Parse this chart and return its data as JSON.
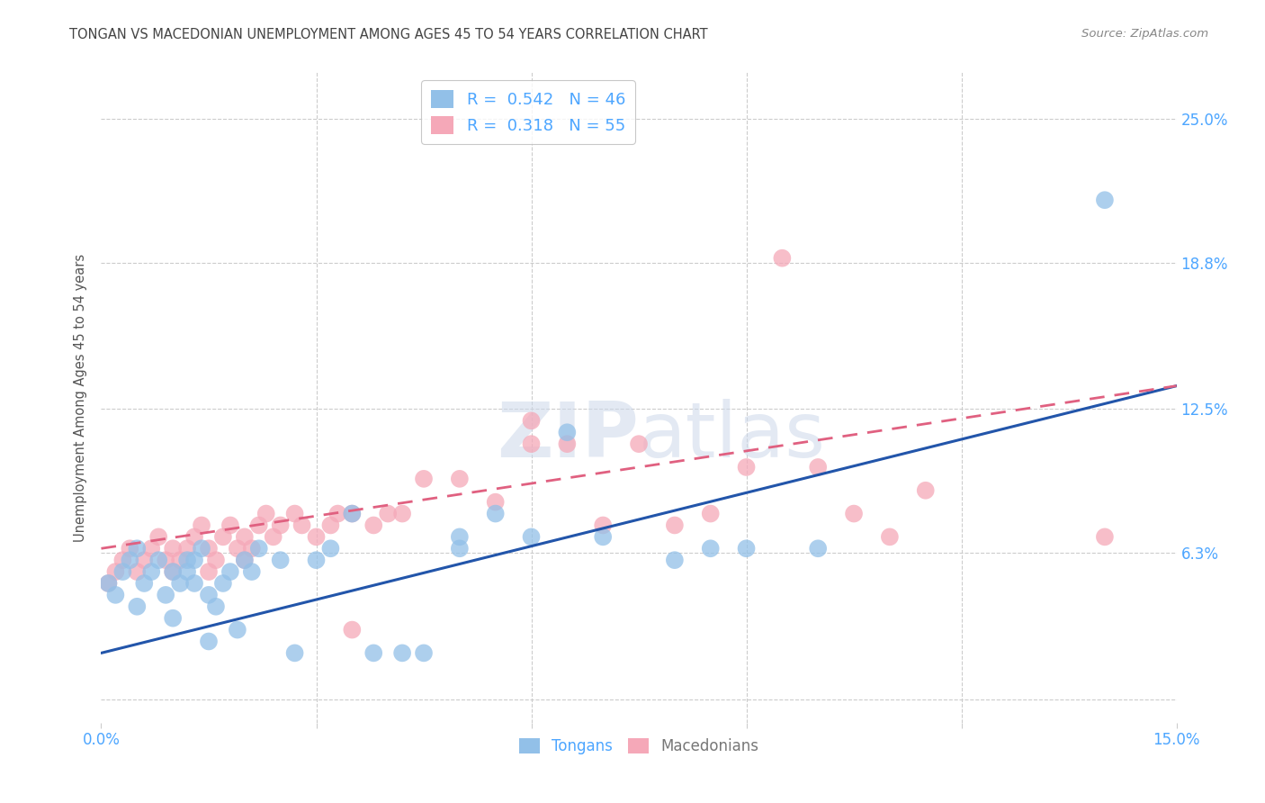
{
  "title": "TONGAN VS MACEDONIAN UNEMPLOYMENT AMONG AGES 45 TO 54 YEARS CORRELATION CHART",
  "source": "Source: ZipAtlas.com",
  "ylabel": "Unemployment Among Ages 45 to 54 years",
  "xlim": [
    0.0,
    0.15
  ],
  "ylim": [
    -0.01,
    0.27
  ],
  "xticks": [
    0.0,
    0.03,
    0.06,
    0.09,
    0.12,
    0.15
  ],
  "ytick_vals": [
    0.0,
    0.063,
    0.125,
    0.188,
    0.25
  ],
  "ytick_labels": [
    "",
    "6.3%",
    "12.5%",
    "18.8%",
    "25.0%"
  ],
  "tongan_R": 0.542,
  "tongan_N": 46,
  "macedonian_R": 0.318,
  "macedonian_N": 55,
  "tongan_color": "#92c0e8",
  "macedonian_color": "#f5a8b8",
  "tongan_line_color": "#2255aa",
  "macedonian_line_color": "#e06080",
  "tongan_scatter_x": [
    0.001,
    0.002,
    0.003,
    0.004,
    0.005,
    0.005,
    0.006,
    0.007,
    0.008,
    0.009,
    0.01,
    0.01,
    0.011,
    0.012,
    0.012,
    0.013,
    0.013,
    0.014,
    0.015,
    0.015,
    0.016,
    0.017,
    0.018,
    0.019,
    0.02,
    0.021,
    0.022,
    0.025,
    0.027,
    0.03,
    0.032,
    0.035,
    0.038,
    0.042,
    0.045,
    0.05,
    0.05,
    0.055,
    0.06,
    0.065,
    0.07,
    0.08,
    0.085,
    0.09,
    0.1,
    0.14
  ],
  "tongan_scatter_y": [
    0.05,
    0.045,
    0.055,
    0.06,
    0.04,
    0.065,
    0.05,
    0.055,
    0.06,
    0.045,
    0.035,
    0.055,
    0.05,
    0.055,
    0.06,
    0.05,
    0.06,
    0.065,
    0.025,
    0.045,
    0.04,
    0.05,
    0.055,
    0.03,
    0.06,
    0.055,
    0.065,
    0.06,
    0.02,
    0.06,
    0.065,
    0.08,
    0.02,
    0.02,
    0.02,
    0.065,
    0.07,
    0.08,
    0.07,
    0.115,
    0.07,
    0.06,
    0.065,
    0.065,
    0.065,
    0.215
  ],
  "macedonian_scatter_x": [
    0.001,
    0.002,
    0.003,
    0.004,
    0.005,
    0.006,
    0.007,
    0.008,
    0.009,
    0.01,
    0.01,
    0.011,
    0.012,
    0.013,
    0.014,
    0.015,
    0.015,
    0.016,
    0.017,
    0.018,
    0.019,
    0.02,
    0.02,
    0.021,
    0.022,
    0.023,
    0.024,
    0.025,
    0.027,
    0.028,
    0.03,
    0.032,
    0.033,
    0.035,
    0.035,
    0.038,
    0.04,
    0.042,
    0.045,
    0.05,
    0.055,
    0.06,
    0.06,
    0.065,
    0.07,
    0.075,
    0.08,
    0.085,
    0.09,
    0.095,
    0.1,
    0.105,
    0.11,
    0.115,
    0.14
  ],
  "macedonian_scatter_y": [
    0.05,
    0.055,
    0.06,
    0.065,
    0.055,
    0.06,
    0.065,
    0.07,
    0.06,
    0.055,
    0.065,
    0.06,
    0.065,
    0.07,
    0.075,
    0.055,
    0.065,
    0.06,
    0.07,
    0.075,
    0.065,
    0.06,
    0.07,
    0.065,
    0.075,
    0.08,
    0.07,
    0.075,
    0.08,
    0.075,
    0.07,
    0.075,
    0.08,
    0.03,
    0.08,
    0.075,
    0.08,
    0.08,
    0.095,
    0.095,
    0.085,
    0.11,
    0.12,
    0.11,
    0.075,
    0.11,
    0.075,
    0.08,
    0.1,
    0.19,
    0.1,
    0.08,
    0.07,
    0.09,
    0.07
  ],
  "grid_color": "#cccccc",
  "background_color": "#ffffff",
  "tick_color": "#4da6ff"
}
